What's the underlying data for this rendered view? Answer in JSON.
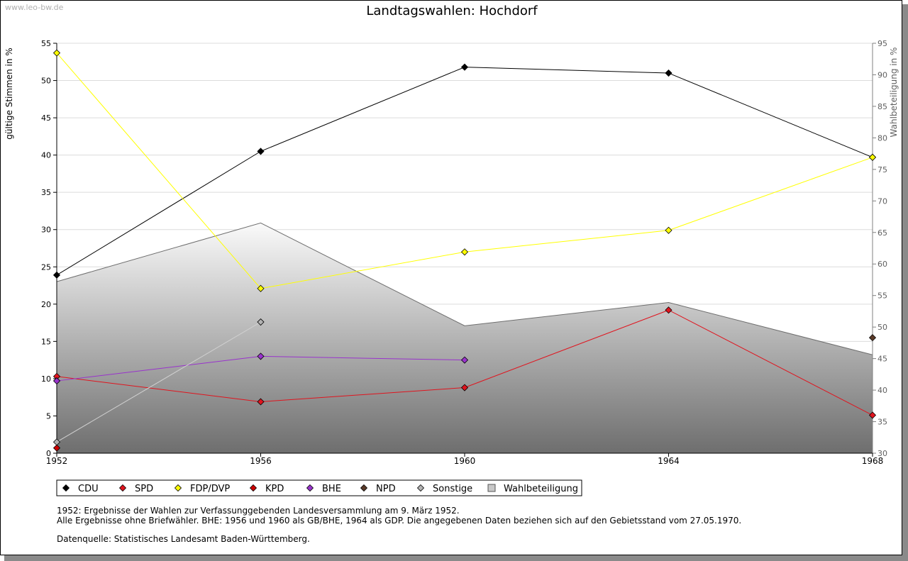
{
  "watermark": "www.leo-bw.de",
  "notes": {
    "line1": "1952: Ergebnisse der Wahlen zur Verfassunggebenden Landesversammlung am 9. März 1952.",
    "line2": "Alle Ergebnisse ohne Briefwähler. BHE: 1956 und 1960 als GB/BHE, 1964 als GDP. Die angegebenen Daten beziehen sich auf den Gebietsstand vom 27.05.1970.",
    "line3": "Datenquelle: Statistisches Landesamt Baden-Württemberg."
  },
  "chart_data": {
    "type": "line",
    "title": "Landtagswahlen: Hochdorf",
    "ylabel": "gültige Stimmen in %",
    "y2label": "Wahlbeteiligung in %",
    "ylim": [
      0,
      55
    ],
    "y2lim": [
      30,
      95
    ],
    "yticks": [
      "0",
      "5",
      "10",
      "15",
      "20",
      "25",
      "30",
      "35",
      "40",
      "45",
      "50",
      "55"
    ],
    "y2ticks": [
      "30",
      "35",
      "40",
      "45",
      "50",
      "55",
      "60",
      "65",
      "70",
      "75",
      "80",
      "85",
      "90",
      "95"
    ],
    "x": [
      1952,
      1956,
      1960,
      1964,
      1968
    ],
    "xticks": [
      "1952",
      "1956",
      "1960",
      "1964",
      "1968"
    ],
    "legend_position": "bottom-left",
    "series": [
      {
        "name": "CDU",
        "color": "#000000",
        "values": [
          23.9,
          40.5,
          51.8,
          51.0,
          39.7
        ]
      },
      {
        "name": "SPD",
        "color": "#e0141e",
        "values": [
          10.3,
          6.9,
          8.8,
          19.2,
          5.1
        ]
      },
      {
        "name": "FDP/DVP",
        "color": "#ffff00",
        "values": [
          53.7,
          22.1,
          27.0,
          29.9,
          39.7
        ]
      },
      {
        "name": "KPD",
        "color": "#cc0000",
        "values": [
          0.7,
          null,
          null,
          null,
          null
        ]
      },
      {
        "name": "BHE",
        "color": "#9933cc",
        "values": [
          9.7,
          13.0,
          12.5,
          null,
          null
        ]
      },
      {
        "name": "NPD",
        "color": "#5a3a28",
        "values": [
          null,
          null,
          null,
          null,
          15.5
        ]
      },
      {
        "name": "Sonstige",
        "color": "#b4b4b4",
        "values": [
          1.5,
          17.6,
          null,
          null,
          null
        ]
      }
    ],
    "area_series": {
      "name": "Wahlbeteiligung",
      "axis": "right",
      "values": [
        57.2,
        66.5,
        50.2,
        53.9,
        45.6
      ]
    }
  }
}
